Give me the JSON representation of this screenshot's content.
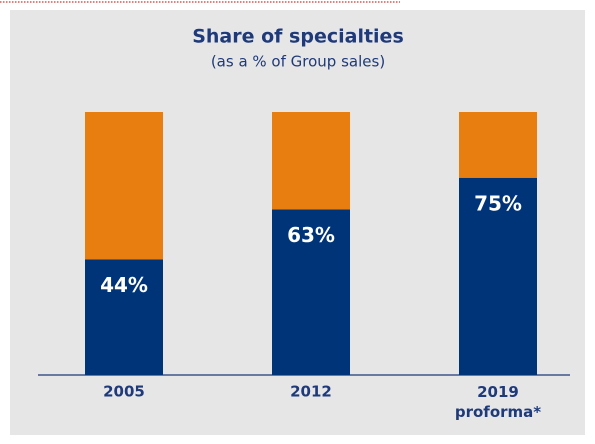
{
  "chart_data": {
    "type": "stacked_bar",
    "title": "Share of specialties",
    "subtitle": "(as a % of Group sales)",
    "categories": [
      "2005",
      "2012",
      "2019\nproforma*"
    ],
    "series": [
      {
        "color": "#003478",
        "values": [
          44,
          63,
          75
        ],
        "value_labels": [
          "44%",
          "63%",
          "75%"
        ]
      },
      {
        "color": "#e87d10",
        "values": [
          56,
          37,
          25
        ]
      }
    ],
    "ylim": [
      0,
      100
    ]
  }
}
